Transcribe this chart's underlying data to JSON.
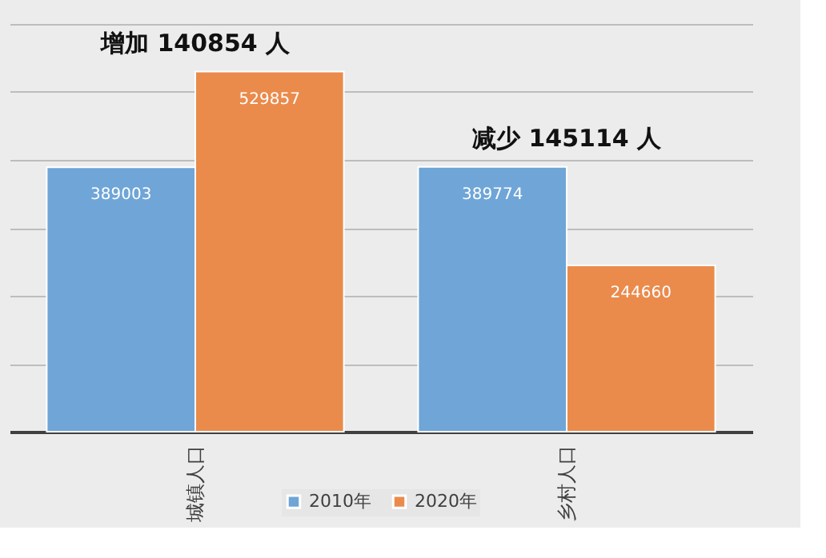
{
  "chart_data": {
    "type": "bar",
    "categories": [
      "城镇人口",
      "乡村人口"
    ],
    "series": [
      {
        "name": "2010年",
        "color": "#6fa5d7",
        "values": [
          389003,
          389774
        ]
      },
      {
        "name": "2020年",
        "color": "#ea8b4c",
        "values": [
          529857,
          244660
        ]
      }
    ],
    "ylim": [
      0,
      600000
    ],
    "yticks": [
      {
        "value": 0,
        "label": null
      },
      {
        "value": 100000,
        "label": null
      },
      {
        "value": 200000,
        "label": null
      },
      {
        "value": 300000,
        "label": null
      },
      {
        "value": 400000,
        "label": null
      },
      {
        "value": 500000,
        "label": null
      },
      {
        "value": 600000,
        "label": null
      }
    ],
    "data_labels": true,
    "grid": "y",
    "legend": "bottom",
    "annotations": [
      "增加 140854 人",
      "减少 145114 人"
    ]
  }
}
